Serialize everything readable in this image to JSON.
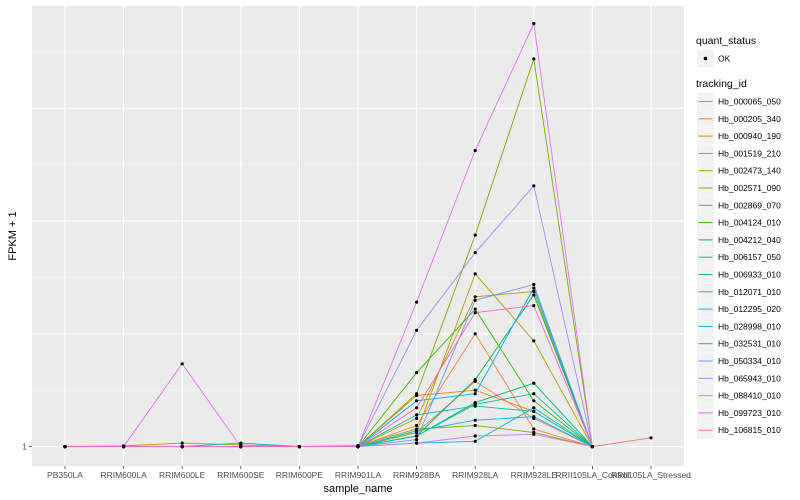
{
  "chart_data": {
    "type": "line",
    "title": "",
    "xlabel": "sample_name",
    "ylabel": "FPKM + 1",
    "grid": true,
    "legend_position": "right",
    "categories": [
      "PB350LA",
      "RRIM600LA",
      "RRIM600LE",
      "RRIM600SE",
      "RRIM600PE",
      "RRIM901LA",
      "RRIM928BA",
      "RRIM928LA",
      "RRIM928LE",
      "RRII105LA_Control",
      "RRII105LA_Stressed"
    ],
    "y_tick_labels": [
      {
        "label": "1",
        "value": 1
      }
    ],
    "ylim": [
      0.45,
      13.5
    ],
    "point_legend": {
      "title": "quant_status",
      "entries": [
        "OK"
      ]
    },
    "color_legend_title": "tracking_id",
    "series": [
      {
        "name": "Hb_000065_050",
        "color": "#F8766D",
        "values": [
          1,
          1,
          1,
          1,
          1,
          1,
          1.4,
          2.85,
          1.8,
          1,
          1.25
        ]
      },
      {
        "name": "Hb_000205_340",
        "color": "#EC823C",
        "values": [
          1,
          1,
          1,
          1,
          1,
          1,
          1.6,
          4.2,
          1.5,
          1,
          null
        ]
      },
      {
        "name": "Hb_000940_190",
        "color": "#DD8D00",
        "values": [
          1,
          1,
          1,
          1,
          1,
          1,
          2.45,
          2.6,
          2.0,
          1,
          null
        ]
      },
      {
        "name": "Hb_001519_210",
        "color": "#CA9700",
        "values": [
          1,
          1,
          1,
          1,
          1,
          1,
          1.8,
          5.25,
          5.4,
          1,
          null
        ]
      },
      {
        "name": "Hb_002473_140",
        "color": "#B3A000",
        "values": [
          1,
          1,
          1,
          1,
          1,
          1,
          1.4,
          5.9,
          4.0,
          1,
          null
        ]
      },
      {
        "name": "Hb_002571_090",
        "color": "#98A800",
        "values": [
          1,
          1.02,
          1.1,
          1.05,
          1,
          1.03,
          1.5,
          1.6,
          1.4,
          1,
          null
        ]
      },
      {
        "name": "Hb_002869_070",
        "color": "#75AF00",
        "values": [
          1,
          1,
          1,
          1,
          1,
          1,
          2.5,
          7.0,
          12.0,
          1,
          null
        ]
      },
      {
        "name": "Hb_004124_010",
        "color": "#3DB600",
        "values": [
          1,
          1,
          1,
          1,
          1,
          1,
          3.1,
          4.9,
          2.3,
          1,
          null
        ]
      },
      {
        "name": "Hb_004212_040",
        "color": "#00BA38",
        "values": [
          1,
          1,
          1,
          1,
          1,
          1,
          1.3,
          2.9,
          5.3,
          1,
          null
        ]
      },
      {
        "name": "Hb_006157_050",
        "color": "#00BE70",
        "values": [
          1,
          1,
          1,
          1,
          1,
          1,
          1.3,
          2.25,
          2.8,
          1,
          null
        ]
      },
      {
        "name": "Hb_006933_010",
        "color": "#00C097",
        "values": [
          1,
          1,
          1,
          1.1,
          1,
          1,
          1.3,
          2.2,
          2.5,
          1,
          null
        ]
      },
      {
        "name": "Hb_012071_010",
        "color": "#00C1B9",
        "values": [
          1,
          1,
          1,
          1,
          1,
          1,
          1.9,
          2.15,
          2.0,
          1,
          null
        ]
      },
      {
        "name": "Hb_012295_020",
        "color": "#00BED6",
        "values": [
          1,
          1,
          1,
          1,
          1,
          1,
          1.1,
          1.15,
          2.1,
          1,
          null
        ]
      },
      {
        "name": "Hb_028998_010",
        "color": "#00B8EB",
        "values": [
          1,
          1,
          1,
          1,
          1,
          1,
          1.45,
          1.75,
          1.85,
          1,
          null
        ]
      },
      {
        "name": "Hb_032531_010",
        "color": "#00AEFA",
        "values": [
          1,
          1,
          1,
          1,
          1,
          1,
          2.3,
          2.5,
          5.5,
          1,
          null
        ]
      },
      {
        "name": "Hb_050334_010",
        "color": "#619CFF",
        "values": [
          1,
          1,
          1,
          1,
          1,
          1,
          1.2,
          5.15,
          5.6,
          1,
          null
        ]
      },
      {
        "name": "Hb_065943_010",
        "color": "#A48BFF",
        "values": [
          1,
          1,
          1,
          1,
          1,
          1,
          4.3,
          6.5,
          8.4,
          1,
          null
        ]
      },
      {
        "name": "Hb_088410_010",
        "color": "#CC7AFF",
        "values": [
          1,
          1,
          1,
          1,
          1,
          1,
          1.1,
          1.3,
          1.35,
          1,
          null
        ]
      },
      {
        "name": "Hb_099723_010",
        "color": "#E96DF8",
        "values": [
          1,
          1,
          3.35,
          1,
          1,
          1,
          5.1,
          9.4,
          13.0,
          1,
          null
        ]
      },
      {
        "name": "Hb_106815_010",
        "color": "#FF62BC",
        "values": [
          1,
          1,
          1,
          1,
          1,
          1,
          2.1,
          4.8,
          5.0,
          1,
          null
        ]
      }
    ]
  }
}
